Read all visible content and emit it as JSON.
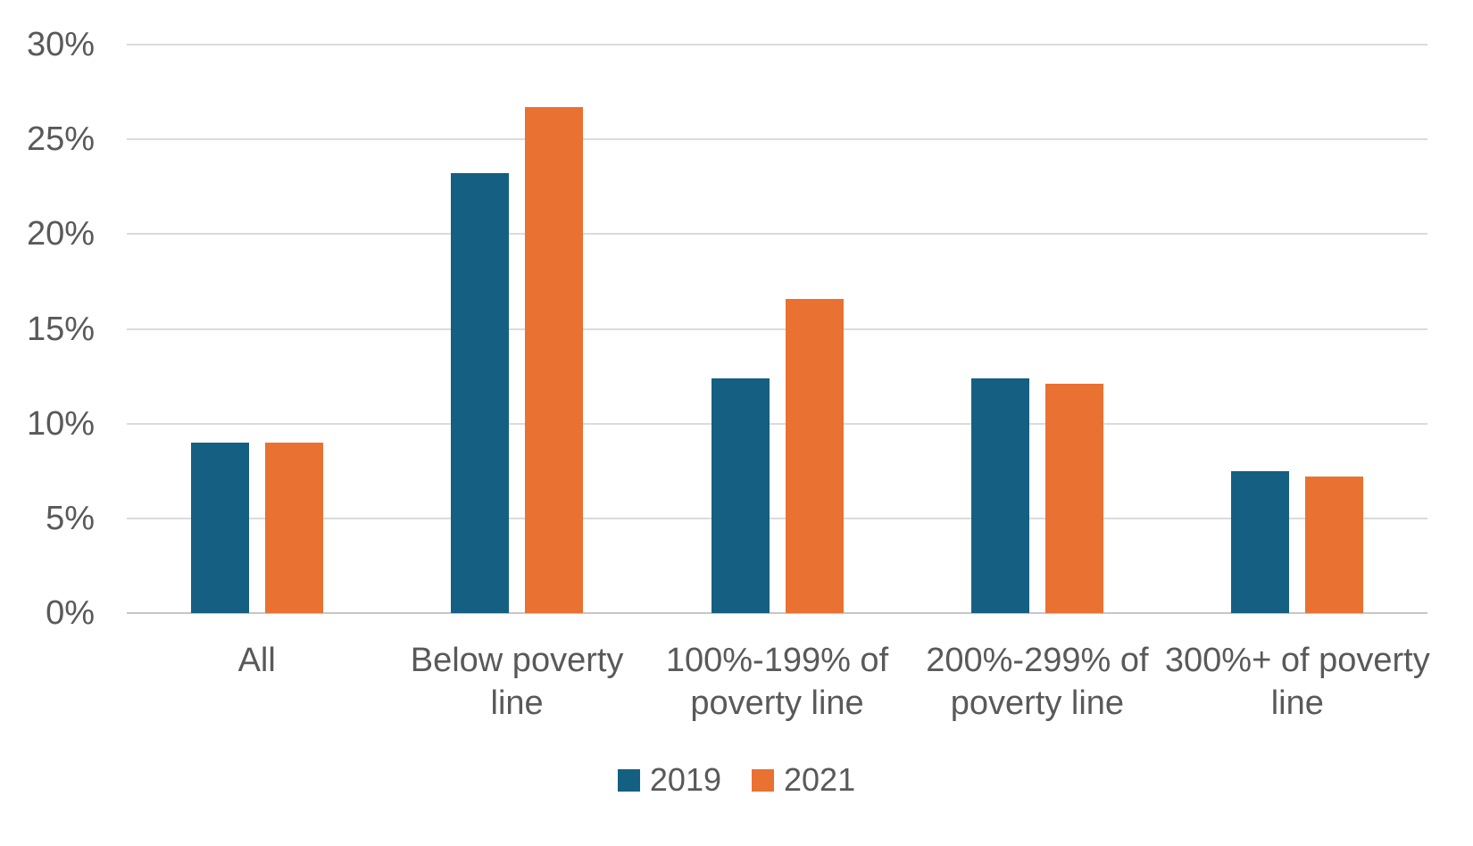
{
  "chart_data": {
    "type": "bar",
    "title": "",
    "categories": [
      "All",
      "Below poverty line",
      "100%-199% of poverty line",
      "200%-299% of poverty line",
      "300%+ of poverty line"
    ],
    "category_labels_wrapped": [
      "All",
      "Below poverty\nline",
      "100%-199% of\npoverty line",
      "200%-299% of\npoverty line",
      "300%+ of poverty\nline"
    ],
    "series": [
      {
        "name": "2019",
        "color": "#156082",
        "values": [
          9.0,
          23.2,
          12.4,
          12.4,
          7.5
        ]
      },
      {
        "name": "2021",
        "color": "#E97132",
        "values": [
          9.0,
          26.7,
          16.6,
          12.1,
          7.2
        ]
      }
    ],
    "ylim": [
      0,
      30
    ],
    "y_ticks": [
      {
        "value": 0,
        "label": "0%"
      },
      {
        "value": 5,
        "label": "5%"
      },
      {
        "value": 10,
        "label": "10%"
      },
      {
        "value": 15,
        "label": "15%"
      },
      {
        "value": 20,
        "label": "20%"
      },
      {
        "value": 25,
        "label": "25%"
      },
      {
        "value": 30,
        "label": "30%"
      }
    ],
    "grid": true,
    "legend_position": "bottom",
    "legend": [
      "2019",
      "2021"
    ]
  },
  "colors": {
    "series_2019": "#156082",
    "series_2021": "#E97132",
    "gridline": "#DBDBDB",
    "axis_line": "#C6C6C6",
    "text": "#595959",
    "background": "#FFFFFF"
  }
}
